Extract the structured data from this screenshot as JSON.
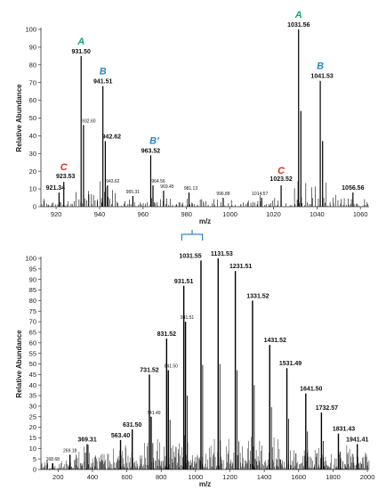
{
  "colors": {
    "A": "#1aa36f",
    "B": "#2a86c4",
    "C": "#e0322a",
    "bracket": "#3c86c8",
    "stick": "#000000",
    "axis": "#333333"
  },
  "chart_data": [
    {
      "type": "bar",
      "xlabel": "m/z",
      "ylabel": "Relative Abundance",
      "xlim": [
        913,
        1064
      ],
      "ylim": [
        0,
        100
      ],
      "x_ticks": [
        "920",
        "940",
        "960",
        "980",
        "1000",
        "1020",
        "1040",
        "1060"
      ],
      "y_ticks": [
        "0",
        "10",
        "20",
        "30",
        "40",
        "50",
        "60",
        "70",
        "80",
        "90",
        "100"
      ],
      "major_peaks": [
        {
          "x": 921.34,
          "y": 8
        },
        {
          "x": 923.53,
          "y": 14
        },
        {
          "x": 931.5,
          "y": 85
        },
        {
          "x": 932.6,
          "y": 46
        },
        {
          "x": 941.51,
          "y": 68
        },
        {
          "x": 942.62,
          "y": 37
        },
        {
          "x": 943.62,
          "y": 12
        },
        {
          "x": 955.31,
          "y": 6
        },
        {
          "x": 963.52,
          "y": 29
        },
        {
          "x": 964.56,
          "y": 12
        },
        {
          "x": 969.45,
          "y": 9
        },
        {
          "x": 981.13,
          "y": 8
        },
        {
          "x": 996.88,
          "y": 5
        },
        {
          "x": 1014.57,
          "y": 5
        },
        {
          "x": 1023.52,
          "y": 12
        },
        {
          "x": 1031.56,
          "y": 100
        },
        {
          "x": 1032.6,
          "y": 54
        },
        {
          "x": 1041.53,
          "y": 71
        },
        {
          "x": 1042.6,
          "y": 37
        },
        {
          "x": 1056.56,
          "y": 8
        }
      ],
      "peak_labels": [
        {
          "x": 921.34,
          "y": 8,
          "text": "921.34",
          "minor": false
        },
        {
          "x": 923.53,
          "y": 14,
          "text": "923.53",
          "minor": false
        },
        {
          "x": 931.5,
          "y": 85,
          "text": "931.50",
          "minor": false
        },
        {
          "x": 932.6,
          "y": 46,
          "text": "932.60",
          "minor": true
        },
        {
          "x": 941.51,
          "y": 68,
          "text": "941.51",
          "minor": false
        },
        {
          "x": 942.62,
          "y": 37,
          "text": "942.62",
          "minor": false
        },
        {
          "x": 943.62,
          "y": 12,
          "text": "943.62",
          "minor": true
        },
        {
          "x": 955.31,
          "y": 6,
          "text": "955.31",
          "minor": true
        },
        {
          "x": 963.52,
          "y": 29,
          "text": "963.52",
          "minor": false
        },
        {
          "x": 964.56,
          "y": 12,
          "text": "964.56",
          "minor": true
        },
        {
          "x": 969.45,
          "y": 9,
          "text": "969.45",
          "minor": true
        },
        {
          "x": 981.13,
          "y": 8,
          "text": "981.13",
          "minor": true
        },
        {
          "x": 996.88,
          "y": 5,
          "text": "996.88",
          "minor": true
        },
        {
          "x": 1014.57,
          "y": 5,
          "text": "1014.57",
          "minor": true
        },
        {
          "x": 1023.52,
          "y": 12,
          "text": "1023.52",
          "minor": false
        },
        {
          "x": 1031.56,
          "y": 100,
          "text": "1031.56",
          "minor": false
        },
        {
          "x": 1041.53,
          "y": 71,
          "text": "1041.53",
          "minor": false
        },
        {
          "x": 1056.56,
          "y": 8,
          "text": "1056.56",
          "minor": false
        }
      ],
      "annotations": [
        {
          "text": "A",
          "x": 931.5,
          "y": 85,
          "color": "A"
        },
        {
          "text": "B",
          "x": 941.51,
          "y": 68,
          "color": "B"
        },
        {
          "text": "C",
          "x": 923.53,
          "y": 14,
          "color": "C"
        },
        {
          "text": "B'",
          "x": 963.52,
          "y": 29,
          "color": "B"
        },
        {
          "text": "C",
          "x": 1023.52,
          "y": 12,
          "color": "C"
        },
        {
          "text": "A",
          "x": 1031.56,
          "y": 100,
          "color": "A"
        },
        {
          "text": "B",
          "x": 1041.53,
          "y": 71,
          "color": "B"
        }
      ]
    },
    {
      "type": "bar",
      "xlabel": "m/z",
      "ylabel": "Relative Abundance",
      "xlim": [
        100,
        2010
      ],
      "ylim": [
        0,
        100
      ],
      "x_ticks": [
        "200",
        "400",
        "600",
        "800",
        "1000",
        "1200",
        "1400",
        "1600",
        "1800",
        "2000"
      ],
      "y_ticks": [
        "0",
        "5",
        "10",
        "15",
        "20",
        "25",
        "30",
        "35",
        "40",
        "45",
        "50",
        "55",
        "60",
        "65",
        "70",
        "75",
        "80",
        "85",
        "90",
        "95",
        "100"
      ],
      "major_peaks": [
        {
          "x": 168.68,
          "y": 3
        },
        {
          "x": 269.18,
          "y": 7
        },
        {
          "x": 369.31,
          "y": 12
        },
        {
          "x": 563.4,
          "y": 14
        },
        {
          "x": 631.5,
          "y": 19
        },
        {
          "x": 731.52,
          "y": 45
        },
        {
          "x": 741.49,
          "y": 25
        },
        {
          "x": 831.52,
          "y": 62
        },
        {
          "x": 841.5,
          "y": 47
        },
        {
          "x": 931.51,
          "y": 87
        },
        {
          "x": 941.51,
          "y": 70
        },
        {
          "x": 1031.55,
          "y": 99
        },
        {
          "x": 1131.53,
          "y": 100
        },
        {
          "x": 1231.51,
          "y": 94
        },
        {
          "x": 1331.52,
          "y": 80
        },
        {
          "x": 1431.52,
          "y": 59
        },
        {
          "x": 1531.49,
          "y": 48
        },
        {
          "x": 1641.5,
          "y": 36
        },
        {
          "x": 1732.57,
          "y": 27
        },
        {
          "x": 1831.43,
          "y": 17
        },
        {
          "x": 1941.41,
          "y": 12
        }
      ],
      "peak_labels": [
        {
          "x": 168.68,
          "y": 3,
          "text": "168.68",
          "minor": true
        },
        {
          "x": 269.18,
          "y": 7,
          "text": "269.18",
          "minor": true
        },
        {
          "x": 369.31,
          "y": 12,
          "text": "369.31",
          "minor": false
        },
        {
          "x": 563.4,
          "y": 14,
          "text": "563.40",
          "minor": false
        },
        {
          "x": 631.5,
          "y": 19,
          "text": "631.50",
          "minor": false
        },
        {
          "x": 731.52,
          "y": 45,
          "text": "731.52",
          "minor": false
        },
        {
          "x": 741.49,
          "y": 25,
          "text": "741.49",
          "minor": true
        },
        {
          "x": 831.52,
          "y": 62,
          "text": "831.52",
          "minor": false
        },
        {
          "x": 841.5,
          "y": 47,
          "text": "841.50",
          "minor": true
        },
        {
          "x": 931.51,
          "y": 87,
          "text": "931.51",
          "minor": false
        },
        {
          "x": 941.51,
          "y": 70,
          "text": "941.51",
          "minor": true
        },
        {
          "x": 1031.55,
          "y": 99,
          "text": "1031.55",
          "minor": false
        },
        {
          "x": 1131.53,
          "y": 100,
          "text": "1131.53",
          "minor": false
        },
        {
          "x": 1231.51,
          "y": 94,
          "text": "1231.51",
          "minor": false
        },
        {
          "x": 1331.52,
          "y": 80,
          "text": "1331.52",
          "minor": false
        },
        {
          "x": 1431.52,
          "y": 59,
          "text": "1431.52",
          "minor": false
        },
        {
          "x": 1531.49,
          "y": 48,
          "text": "1531.49",
          "minor": false
        },
        {
          "x": 1641.5,
          "y": 36,
          "text": "1641.50",
          "minor": false
        },
        {
          "x": 1732.57,
          "y": 27,
          "text": "1732.57",
          "minor": false
        },
        {
          "x": 1831.43,
          "y": 17,
          "text": "1831.43",
          "minor": false
        },
        {
          "x": 1941.41,
          "y": 12,
          "text": "1941.41",
          "minor": false
        }
      ],
      "bracket": {
        "x_start": 920,
        "x_end": 1040
      }
    }
  ]
}
